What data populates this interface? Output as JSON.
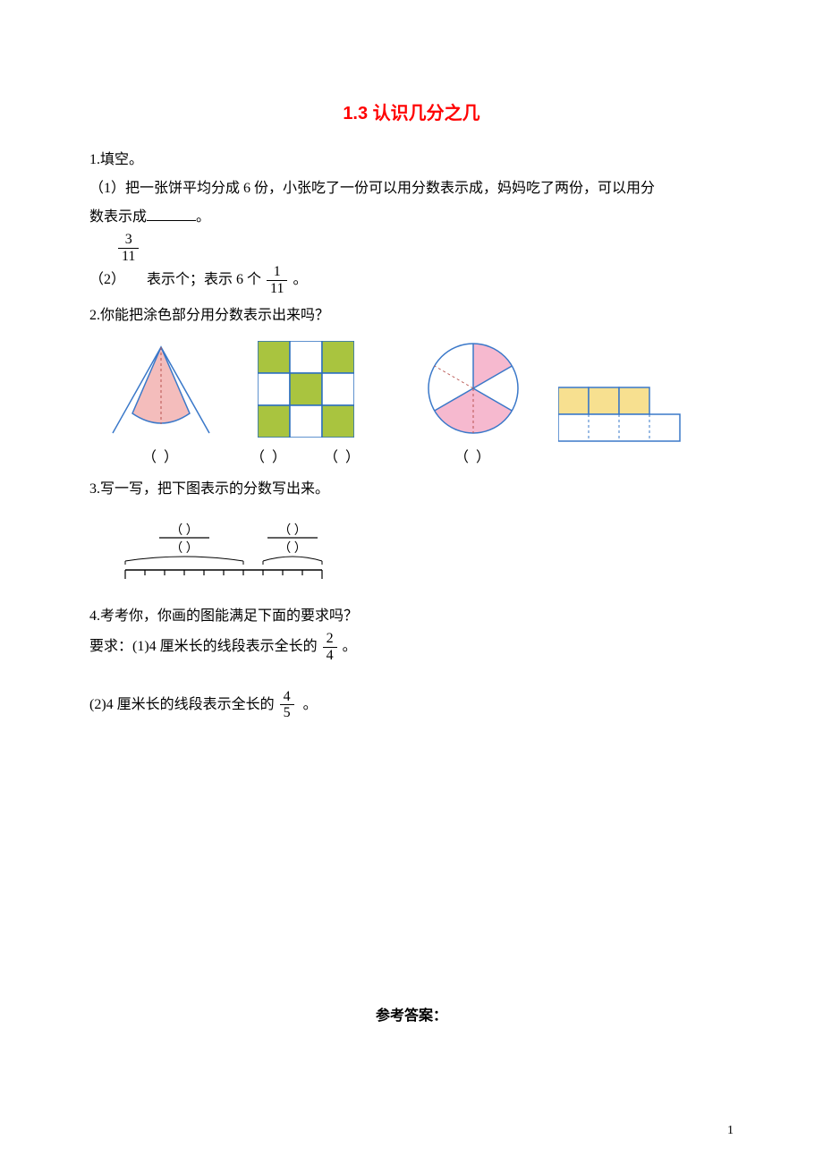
{
  "title": "1.3 认识几分之几",
  "title_color": "#ff0000",
  "q1": {
    "heading": "1.填空。",
    "sub1_a": "（1）把一张饼平均分成 6 份，小张吃了一份可以用分数表示成，妈妈吃了两份，可以用分",
    "sub1_b": "数表示成",
    "sub1_c": "。",
    "sub2_label": "（2）",
    "frac1_num": "3",
    "frac1_den": "11",
    "sub2_mid": "表示个；表示 6 个",
    "frac2_num": "1",
    "frac2_den": "11",
    "sub2_end": "。"
  },
  "q2": {
    "heading": "2.你能把涂色部分用分数表示出来吗？",
    "paren": "（   ）",
    "triangle": {
      "fill": "#f4bdbc",
      "stroke": "#3a78c9",
      "dash_stroke": "#b85450"
    },
    "grid3": {
      "fill": "#a9c43f",
      "stroke": "#2b6fbf",
      "cells": [
        [
          1,
          0,
          1
        ],
        [
          0,
          1,
          0
        ],
        [
          1,
          0,
          1
        ]
      ]
    },
    "circle": {
      "fill": "#f6b9cf",
      "stroke": "#3a78c9",
      "dash_stroke": "#b85450",
      "shaded_sectors": [
        0,
        2,
        3
      ]
    },
    "rects": {
      "fill": "#f7e090",
      "stroke": "#3a78c9",
      "top_count": 3,
      "bottom_count": 4
    }
  },
  "q3": {
    "heading": "3.写一写，把下图表示的分数写出来。",
    "ruler_total": 10,
    "seg_a": 6,
    "seg_b": 3,
    "stroke": "#000000"
  },
  "q4": {
    "heading": "4.考考你，你画的图能满足下面的要求吗？",
    "line1_a": "要求：(1)4 厘米长的线段表示全长的",
    "frac1_num": "2",
    "frac1_den": "4",
    "line1_b": "。",
    "line2_a": "(2)4 厘米长的线段表示全长的",
    "frac2_num": "4",
    "frac2_den": "5",
    "line2_b": "。"
  },
  "answers_label": "参考答案：",
  "page_number": "1"
}
